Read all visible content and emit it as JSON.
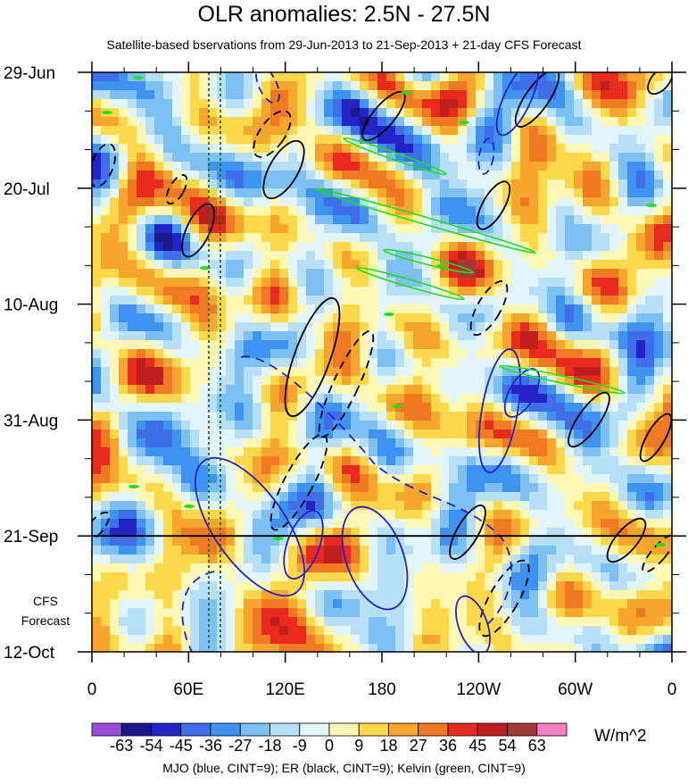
{
  "title": "OLR anomalies: 2.5N - 27.5N",
  "subtitle": "Satellite-based bservations from 29-Jun-2013 to 21-Sep-2013 + 21-day CFS Forecast",
  "units": "W/m^2",
  "forecast_label": [
    "CFS",
    "Forecast"
  ],
  "footnote": "MJO (blue, CINT=9); ER (black, CINT=9); Kelvin (green, CINT=9)",
  "chart_data": {
    "type": "heatmap",
    "xlabel": "",
    "ylabel": "",
    "x_ticks": [
      "0",
      "60E",
      "120E",
      "180",
      "120W",
      "60W",
      "0"
    ],
    "x_range": [
      0,
      360
    ],
    "y_ticks": [
      "29-Jun",
      "20-Jul",
      "10-Aug",
      "31-Aug",
      "21-Sep",
      "12-Oct"
    ],
    "y_range": [
      "29-Jun-2013",
      "12-Oct-2013"
    ],
    "observation_end": "21-Sep-2013",
    "colorbar_levels": [
      -63,
      -54,
      -45,
      -36,
      -27,
      -18,
      -9,
      0,
      9,
      18,
      27,
      36,
      45,
      54,
      63
    ],
    "colorbar_labels": [
      "-63",
      "-54",
      "-45",
      "-36",
      "-27",
      "-18",
      "-9",
      "0",
      "9",
      "18",
      "27",
      "36",
      "45",
      "54",
      "63"
    ],
    "colorbar_colors": [
      "#9b4dd8",
      "#1a1a8c",
      "#2323c6",
      "#3f6ee8",
      "#3d93ef",
      "#7cc0f4",
      "#b7e0f8",
      "#e2f5fb",
      "#fff7b4",
      "#fdd84a",
      "#f7a52e",
      "#f07a23",
      "#e82a1f",
      "#bf1f1f",
      "#a33a3a",
      "#f27ec4"
    ],
    "overlays": [
      {
        "name": "MJO",
        "color": "#2222cc"
      },
      {
        "name": "ER",
        "color": "#000000"
      },
      {
        "name": "Kelvin",
        "color": "#22dd22"
      }
    ]
  }
}
